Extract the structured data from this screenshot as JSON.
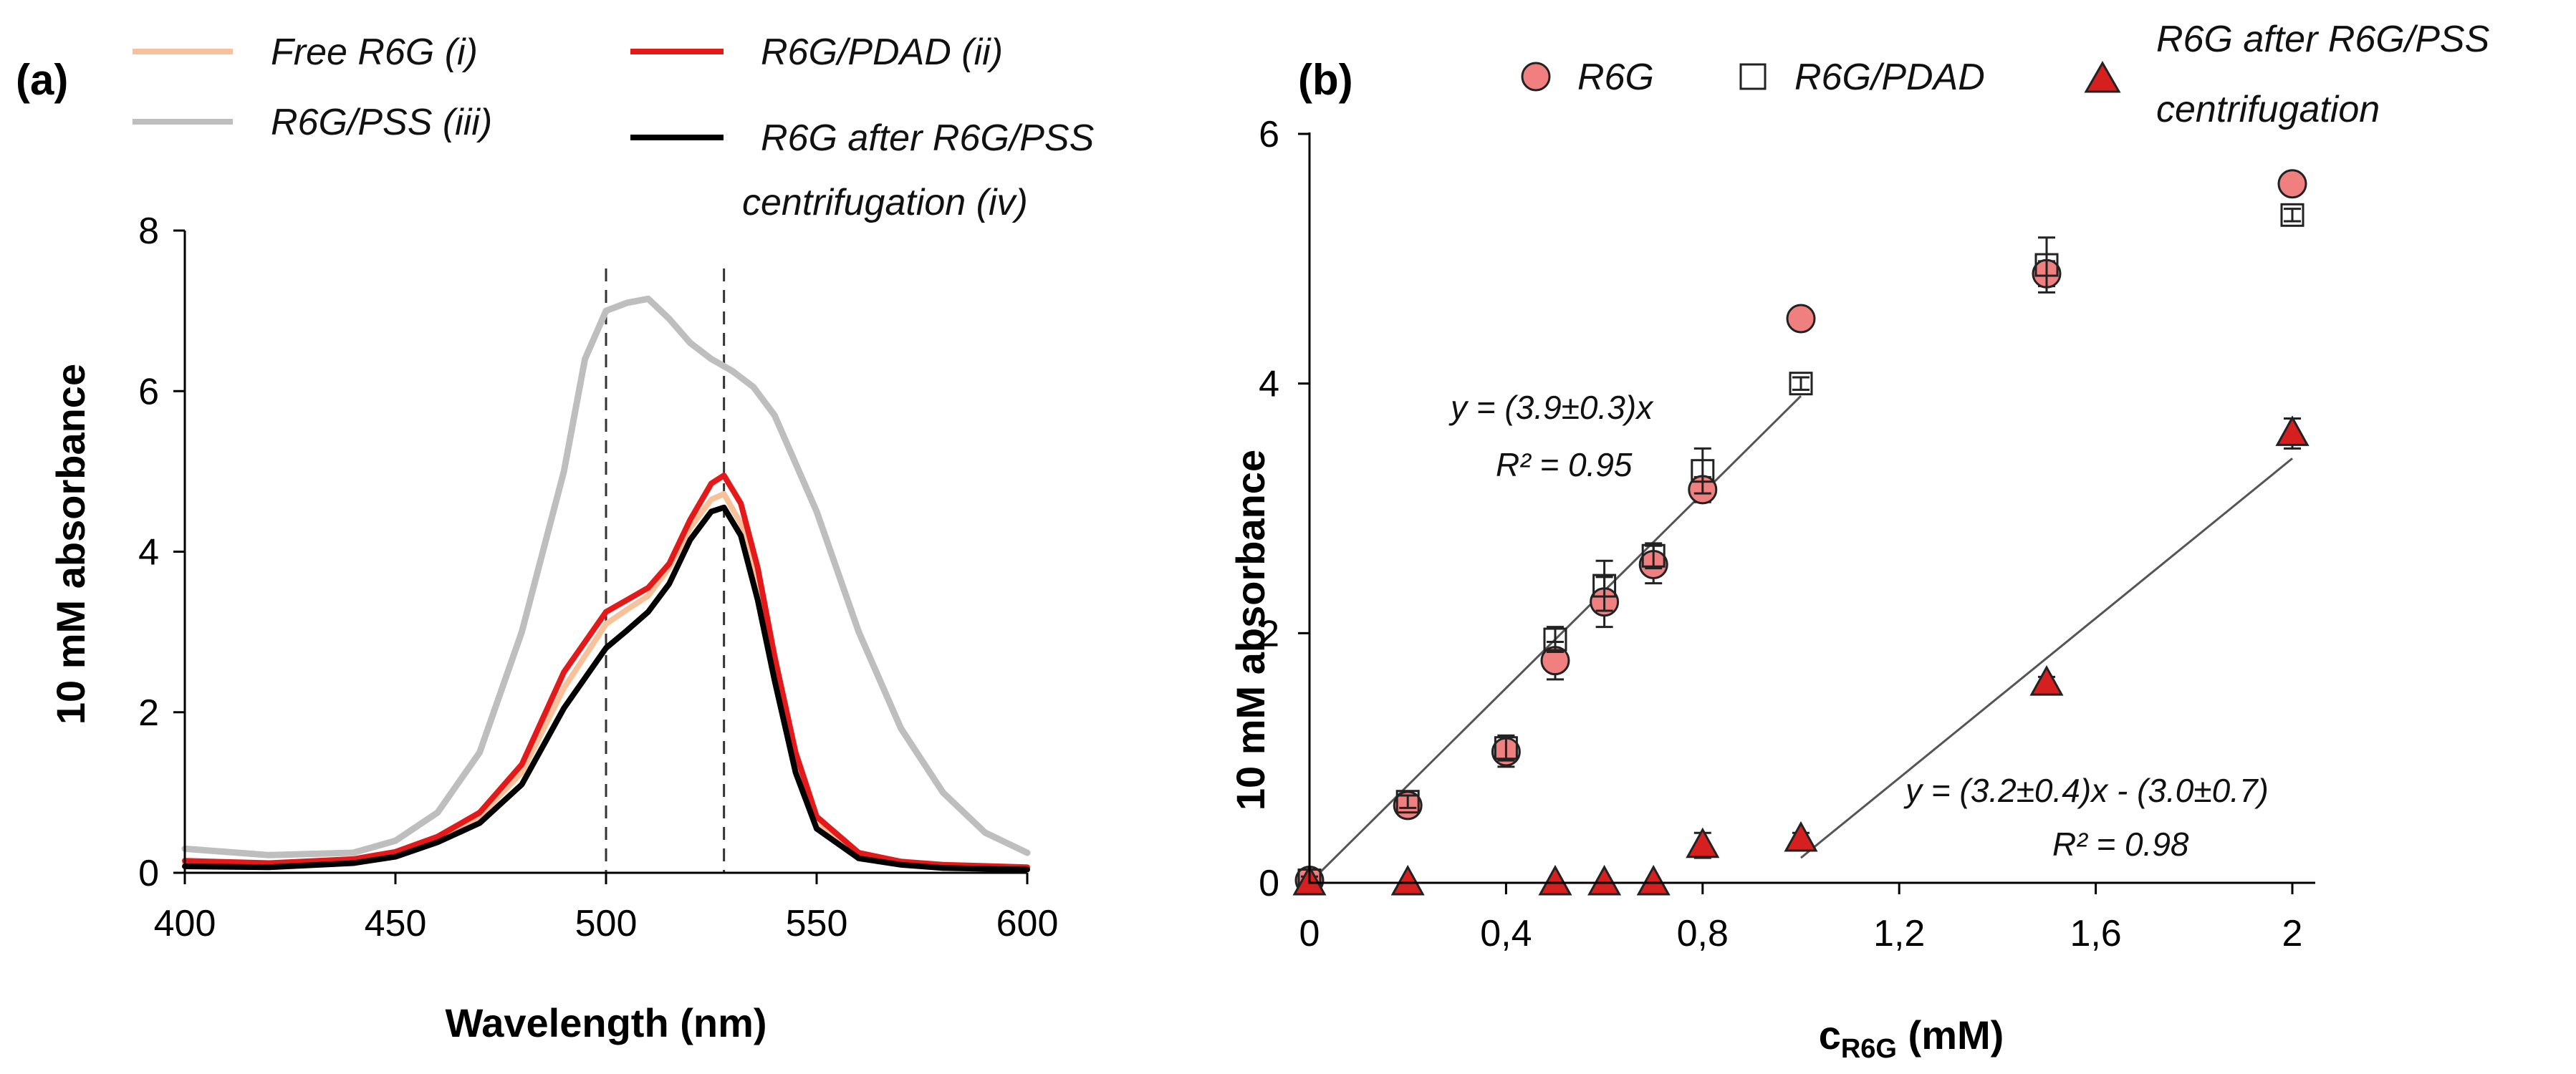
{
  "chart_data": [
    {
      "panel": "(a)",
      "type": "line",
      "xlabel": "Wavelength (nm)",
      "ylabel": "10 mM absorbance",
      "xlim": [
        400,
        600
      ],
      "ylim": [
        0,
        8
      ],
      "xticks": [
        400,
        450,
        500,
        550,
        600
      ],
      "yticks": [
        0,
        2,
        4,
        6,
        8
      ],
      "reference_lines_x": [
        500,
        528
      ],
      "series": [
        {
          "name": "Free R6G (i)",
          "color": "#F7C29A",
          "x": [
            400,
            420,
            440,
            450,
            460,
            470,
            480,
            490,
            500,
            505,
            510,
            515,
            520,
            525,
            528,
            532,
            536,
            540,
            545,
            550,
            560,
            570,
            580,
            600
          ],
          "y": [
            0.12,
            0.1,
            0.15,
            0.24,
            0.42,
            0.7,
            1.25,
            2.3,
            3.1,
            3.28,
            3.45,
            3.8,
            4.3,
            4.65,
            4.72,
            4.35,
            3.55,
            2.5,
            1.35,
            0.62,
            0.22,
            0.12,
            0.08,
            0.05
          ]
        },
        {
          "name": "R6G/PDAD (ii)",
          "color": "#E41A1A",
          "x": [
            400,
            420,
            440,
            450,
            460,
            470,
            480,
            490,
            500,
            505,
            510,
            515,
            520,
            525,
            528,
            532,
            536,
            540,
            545,
            550,
            560,
            570,
            580,
            600
          ],
          "y": [
            0.15,
            0.12,
            0.17,
            0.26,
            0.45,
            0.75,
            1.35,
            2.5,
            3.25,
            3.4,
            3.55,
            3.85,
            4.4,
            4.85,
            4.95,
            4.6,
            3.8,
            2.7,
            1.5,
            0.7,
            0.25,
            0.14,
            0.1,
            0.07
          ]
        },
        {
          "name": "R6G/PSS (iii)",
          "color": "#BEBEBE",
          "x": [
            400,
            420,
            440,
            450,
            460,
            470,
            480,
            490,
            495,
            500,
            505,
            510,
            515,
            520,
            525,
            530,
            535,
            540,
            550,
            560,
            570,
            580,
            590,
            600
          ],
          "y": [
            0.3,
            0.22,
            0.25,
            0.4,
            0.75,
            1.5,
            3.0,
            5.0,
            6.4,
            7.0,
            7.1,
            7.15,
            6.9,
            6.6,
            6.4,
            6.25,
            6.05,
            5.7,
            4.5,
            3.0,
            1.8,
            1.0,
            0.5,
            0.25
          ]
        },
        {
          "name": "R6G after R6G/PSS centrifugation (iv)",
          "color": "#000000",
          "x": [
            400,
            420,
            440,
            450,
            460,
            470,
            480,
            490,
            500,
            505,
            510,
            515,
            520,
            525,
            528,
            532,
            536,
            540,
            545,
            550,
            560,
            570,
            580,
            600
          ],
          "y": [
            0.08,
            0.07,
            0.12,
            0.2,
            0.38,
            0.62,
            1.1,
            2.05,
            2.8,
            3.02,
            3.25,
            3.6,
            4.15,
            4.5,
            4.55,
            4.2,
            3.4,
            2.4,
            1.25,
            0.55,
            0.18,
            0.1,
            0.06,
            0.04
          ]
        }
      ]
    },
    {
      "panel": "(b)",
      "type": "scatter",
      "xlabel": "c",
      "xlabel_sub": "R6G",
      "xlabel_unit": " (mM)",
      "ylabel": "10 mM absorbance",
      "xlim": [
        0,
        2
      ],
      "ylim": [
        0,
        6
      ],
      "xticks": [
        "0",
        "0,4",
        "0,8",
        "1,2",
        "1,6",
        "2"
      ],
      "xtick_values": [
        0,
        0.4,
        0.8,
        1.2,
        1.6,
        2
      ],
      "yticks": [
        0,
        2,
        4,
        6
      ],
      "series": [
        {
          "name": "R6G",
          "marker": "circle",
          "color": "#F08080",
          "x": [
            0,
            0.2,
            0.4,
            0.5,
            0.6,
            0.7,
            0.8,
            1.0,
            1.5,
            2.0
          ],
          "y": [
            0.02,
            0.62,
            1.05,
            1.78,
            2.25,
            2.55,
            3.15,
            4.52,
            4.88,
            5.6
          ],
          "err": [
            0.04,
            0.08,
            0.12,
            0.15,
            0.2,
            0.15,
            0.1,
            0.05,
            0.1,
            0.05
          ]
        },
        {
          "name": "R6G/PDAD",
          "marker": "square",
          "color": "#FFFFFF",
          "x": [
            0,
            0.2,
            0.4,
            0.5,
            0.6,
            0.7,
            0.8,
            1.0,
            1.5,
            2.0
          ],
          "y": [
            0.02,
            0.65,
            1.08,
            1.95,
            2.38,
            2.62,
            3.3,
            4.0,
            4.95,
            5.35
          ],
          "err": [
            0.03,
            0.05,
            0.1,
            0.1,
            0.2,
            0.1,
            0.18,
            0.05,
            0.22,
            0.05
          ]
        },
        {
          "name": "R6G after R6G/PSS centrifugation",
          "marker": "triangle",
          "color": "#D62020",
          "x": [
            0,
            0.2,
            0.5,
            0.6,
            0.7,
            0.8,
            1.0,
            1.5,
            2.0
          ],
          "y": [
            0.0,
            0.0,
            0.0,
            0.0,
            0.0,
            0.3,
            0.35,
            1.6,
            3.6
          ],
          "err": [
            0,
            0,
            0,
            0,
            0,
            0.1,
            0.05,
            0.05,
            0.12
          ]
        }
      ],
      "fits": [
        {
          "name": "R6G fit",
          "slope": 3.9,
          "intercept": 0,
          "x_range": [
            0,
            1.0
          ]
        },
        {
          "name": "R6G after centrifugation fit",
          "slope": 3.2,
          "intercept": -3.0,
          "x_range": [
            1.0,
            2.0
          ]
        }
      ],
      "annotations": [
        {
          "line1": "y = (3.9±0.3)x",
          "line2": "R² = 0.95"
        },
        {
          "line1": "y = (3.2±0.4)x - (3.0±0.7)",
          "line2": "R² = 0.98"
        }
      ]
    }
  ],
  "legend_a": [
    "Free R6G (i)",
    "R6G/PDAD (ii)",
    "R6G/PSS (iii)",
    "R6G after R6G/PSS",
    "centrifugation (iv)"
  ],
  "legend_b": [
    "R6G",
    "R6G/PDAD",
    "R6G after R6G/PSS",
    "centrifugation"
  ]
}
